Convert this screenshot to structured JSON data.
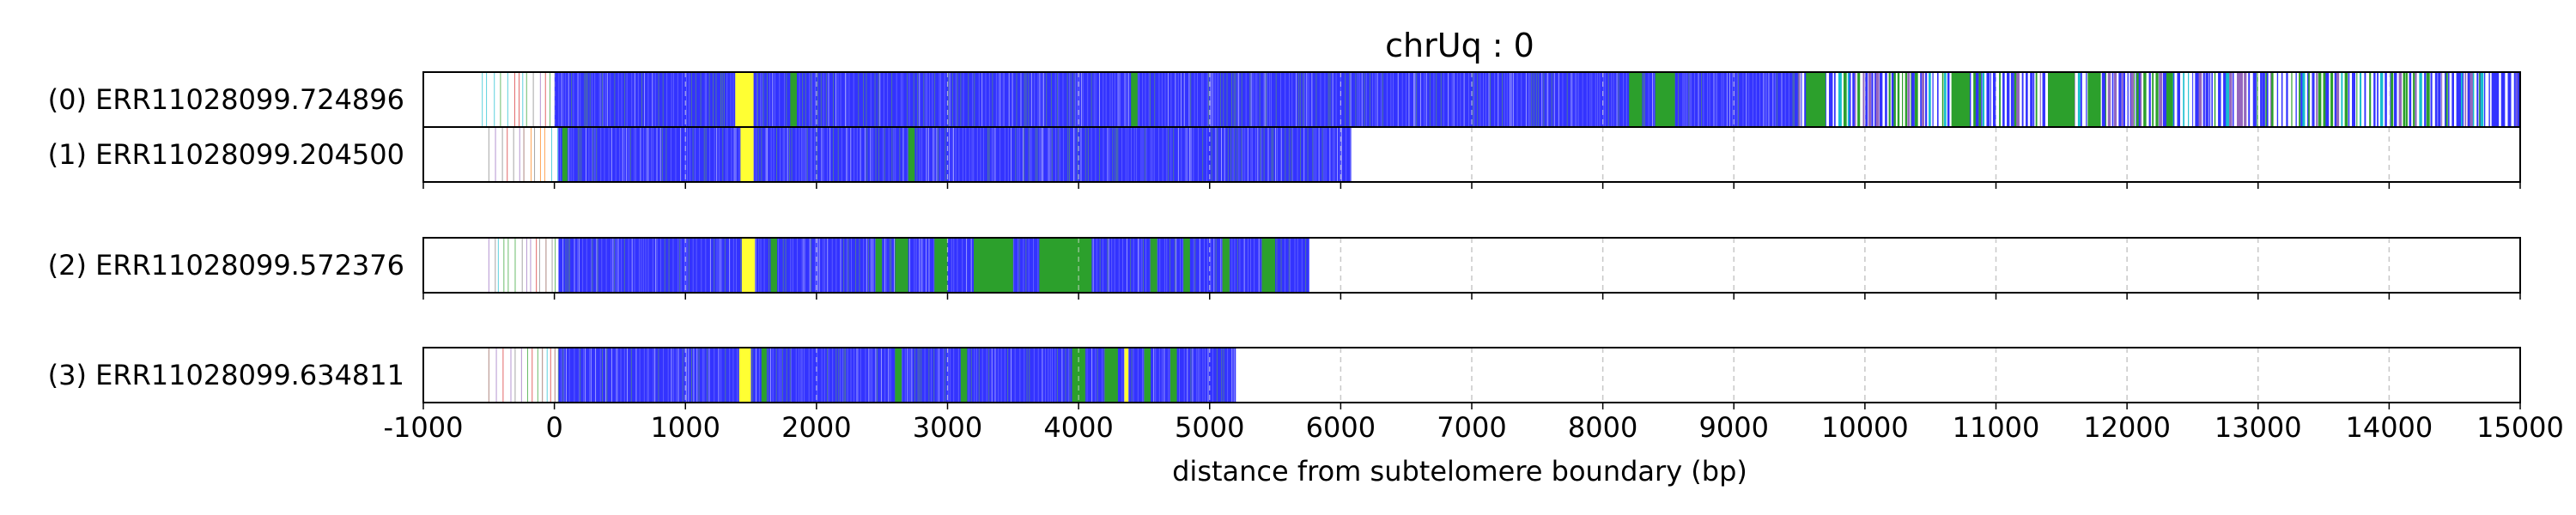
{
  "chart_data": {
    "type": "heatmap",
    "title": "chrUq : 0",
    "xlabel": "distance from subtelomere boundary (bp)",
    "xlim": [
      -1000,
      15000
    ],
    "xticks": [
      -1000,
      0,
      1000,
      2000,
      3000,
      4000,
      5000,
      6000,
      7000,
      8000,
      9000,
      10000,
      11000,
      12000,
      13000,
      14000,
      15000
    ],
    "xtick_labels": [
      "-1000",
      "0",
      "1000",
      "2000",
      "3000",
      "4000",
      "5000",
      "6000",
      "7000",
      "8000",
      "9000",
      "10000",
      "11000",
      "12000",
      "13000",
      "14000",
      "15000"
    ],
    "grid": "vertical dashed",
    "colors": {
      "blue": "#3333ff",
      "green": "#2ca02c",
      "yellow": "#ffff33",
      "grid": "#c8c8c8"
    },
    "reads": [
      {
        "label": "(0) ERR11028099.724896",
        "start": -550,
        "end": 15000,
        "blue_from": 0,
        "blue_to": 9500,
        "yellow": [
          [
            1380,
            1520
          ]
        ],
        "green": [
          [
            1800,
            1850
          ],
          [
            4400,
            4450
          ],
          [
            8200,
            8300
          ],
          [
            8400,
            8550
          ],
          [
            9550,
            9700
          ],
          [
            10700,
            10800
          ],
          [
            11400,
            11600
          ],
          [
            11700,
            11800
          ],
          [
            12300,
            12350
          ]
        ]
      },
      {
        "label": "(1) ERR11028099.204500",
        "start": -500,
        "end": 6080,
        "blue_from": 30,
        "blue_to": 6080,
        "yellow": [
          [
            1420,
            1520
          ]
        ],
        "green": [
          [
            60,
            100
          ],
          [
            2700,
            2750
          ]
        ]
      },
      {
        "label": "(2) ERR11028099.572376",
        "start": -500,
        "end": 5760,
        "blue_from": 30,
        "blue_to": 5760,
        "yellow": [
          [
            1430,
            1530
          ]
        ],
        "green": [
          [
            1650,
            1700
          ],
          [
            2450,
            2500
          ],
          [
            2600,
            2700
          ],
          [
            2900,
            3000
          ],
          [
            3200,
            3500
          ],
          [
            3700,
            4100
          ],
          [
            4550,
            4600
          ],
          [
            4800,
            4850
          ],
          [
            5100,
            5150
          ],
          [
            5400,
            5500
          ]
        ]
      },
      {
        "label": "(3) ERR11028099.634811",
        "start": -500,
        "end": 5200,
        "blue_from": 30,
        "blue_to": 5200,
        "yellow": [
          [
            1410,
            1500
          ],
          [
            4350,
            4380
          ]
        ],
        "green": [
          [
            1580,
            1620
          ],
          [
            2600,
            2650
          ],
          [
            3100,
            3150
          ],
          [
            3950,
            4050
          ],
          [
            4200,
            4300
          ],
          [
            4500,
            4550
          ],
          [
            4700,
            4750
          ]
        ]
      }
    ]
  }
}
